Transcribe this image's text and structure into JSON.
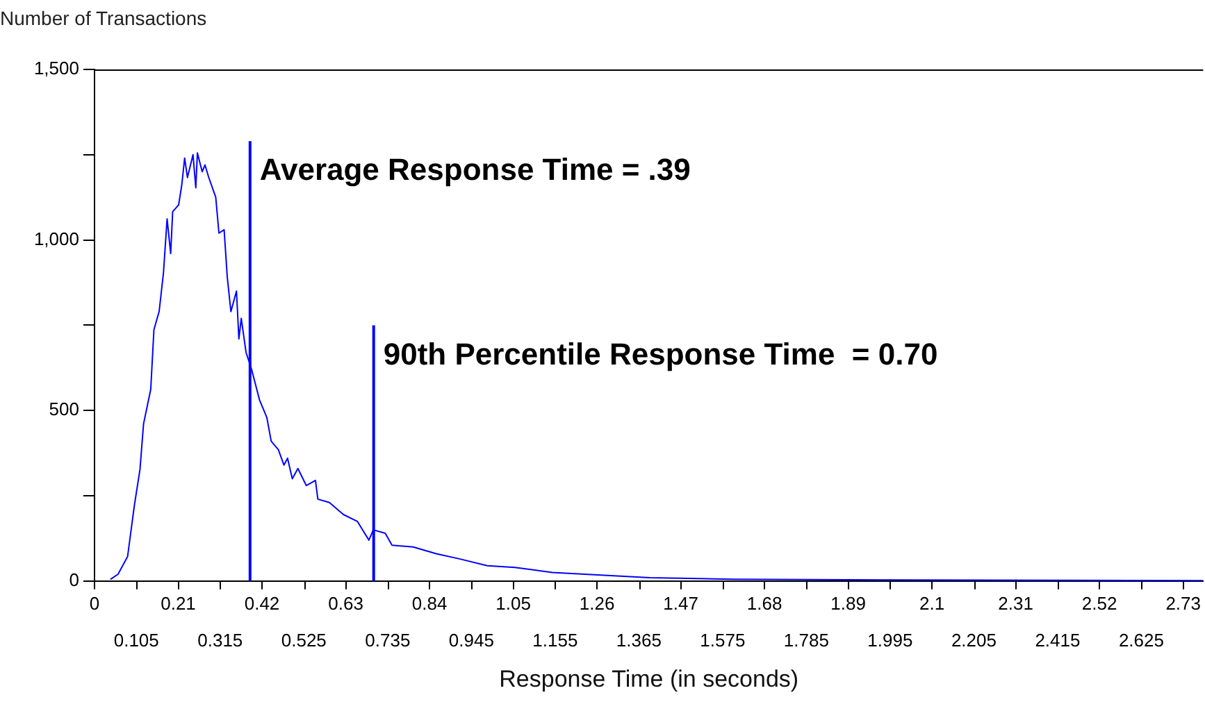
{
  "chart_data": {
    "type": "line",
    "xlabel": "Response Time (in seconds)",
    "ylabel": "Number of Transactions",
    "x": [
      0.04,
      0.059,
      0.083,
      0.1,
      0.114,
      0.123,
      0.141,
      0.149,
      0.162,
      0.173,
      0.182,
      0.191,
      0.196,
      0.211,
      0.219,
      0.226,
      0.233,
      0.247,
      0.254,
      0.258,
      0.27,
      0.277,
      0.286,
      0.304,
      0.312,
      0.325,
      0.333,
      0.342,
      0.356,
      0.362,
      0.368,
      0.38,
      0.394,
      0.414,
      0.432,
      0.443,
      0.461,
      0.475,
      0.484,
      0.496,
      0.51,
      0.531,
      0.554,
      0.56,
      0.589,
      0.624,
      0.659,
      0.688,
      0.699,
      0.729,
      0.746,
      0.799,
      0.857,
      0.915,
      0.985,
      1.054,
      1.148,
      1.229,
      1.392,
      1.6,
      2.0,
      2.4,
      2.78
    ],
    "series": [
      {
        "color": "#0000ff",
        "values": [
          5,
          20,
          72,
          222,
          327,
          461,
          562,
          737,
          790,
          905,
          1062,
          960,
          1083,
          1103,
          1163,
          1240,
          1183,
          1250,
          1153,
          1255,
          1200,
          1220,
          1185,
          1125,
          1020,
          1030,
          890,
          790,
          850,
          710,
          770,
          670,
          620,
          530,
          480,
          410,
          385,
          340,
          360,
          300,
          330,
          280,
          295,
          240,
          230,
          195,
          175,
          120,
          150,
          140,
          105,
          100,
          80,
          65,
          45,
          40,
          25,
          20,
          10,
          5,
          3,
          2,
          1
        ]
      }
    ],
    "xlim": [
      0,
      2.78
    ],
    "xticks": [
      0,
      0.21,
      0.42,
      0.63,
      0.84,
      1.05,
      1.26,
      1.47,
      1.68,
      1.89,
      2.1,
      2.31,
      2.52,
      2.73
    ],
    "x2lim": [
      0,
      2.78
    ],
    "x2ticks": [
      0.105,
      0.315,
      0.525,
      0.735,
      0.945,
      1.155,
      1.365,
      1.575,
      1.785,
      1.995,
      2.205,
      2.415,
      2.625
    ],
    "ylim": [
      0,
      1500
    ],
    "yticks": [
      0,
      {
        "value": 250,
        "label": null
      },
      500,
      {
        "value": 750,
        "label": null
      },
      {
        "value": 1000,
        "label": "1,000"
      },
      {
        "value": 1250,
        "label": null
      },
      {
        "value": 1500,
        "label": "1,500"
      }
    ],
    "ref_lines": [
      {
        "axis": "x",
        "value": 0.39,
        "label": "Average Response Time = .39",
        "color": "#0000ff"
      },
      {
        "axis": "x",
        "value": 0.7,
        "label": "90th Percentile Response Time  = 0.70",
        "color": "#0000ff"
      }
    ],
    "grid": false,
    "legend": false,
    "marker": "none",
    "line_style": "solid"
  }
}
